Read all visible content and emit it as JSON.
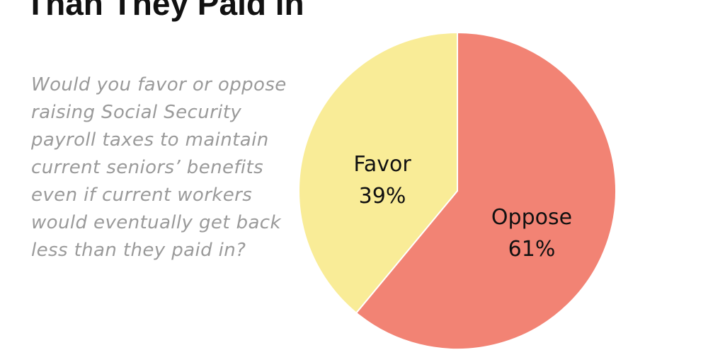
{
  "title": "Than They Paid in",
  "question": "Would you favor or oppose raising Social Security payroll taxes to maintain current seniors’ benefits even if current workers would eventually get back less than they paid in?",
  "chart_data": {
    "type": "pie",
    "slices": [
      {
        "label": "Oppose",
        "value": 61,
        "value_label": "61%",
        "color": "#f28374"
      },
      {
        "label": "Favor",
        "value": 39,
        "value_label": "39%",
        "color": "#f9ec97"
      }
    ],
    "start": "top",
    "direction": "clockwise",
    "slice_border_color": "#ffffff"
  }
}
